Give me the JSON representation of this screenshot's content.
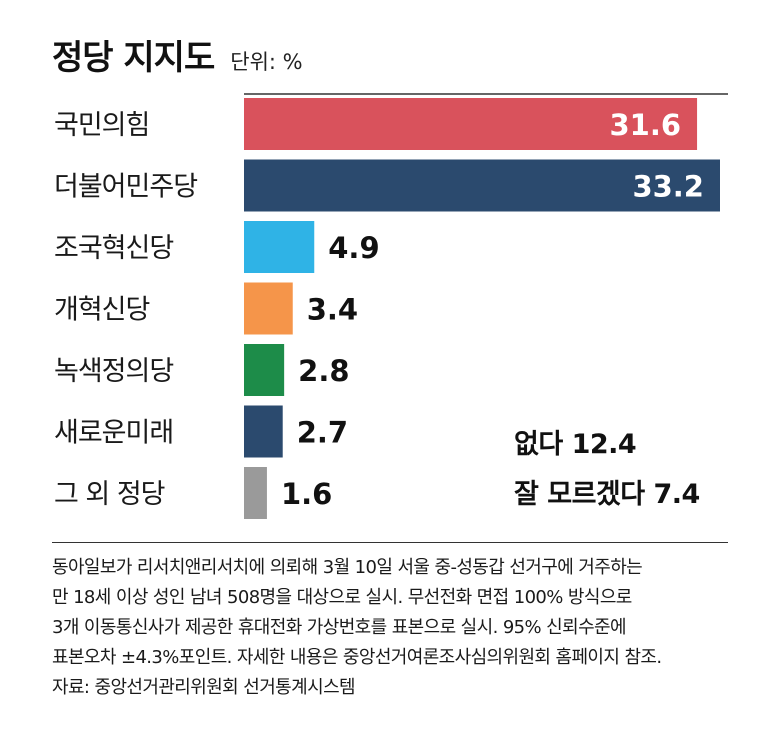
{
  "header": {
    "title": "정당 지지도",
    "unit": "단위: %"
  },
  "chart_data": {
    "type": "bar",
    "orientation": "horizontal",
    "title": "정당 지지도",
    "unit": "%",
    "categories": [
      "국민의힘",
      "더불어민주당",
      "조국혁신당",
      "개혁신당",
      "녹색정의당",
      "새로운미래",
      "그 외 정당"
    ],
    "values": [
      31.6,
      33.2,
      4.9,
      3.4,
      2.8,
      2.7,
      1.6
    ],
    "value_labels": [
      "31.6",
      "33.2",
      "4.9",
      "3.4",
      "2.8",
      "2.7",
      "1.6"
    ],
    "colors": [
      "#d9525c",
      "#2b4a6e",
      "#2fb3e6",
      "#f5954a",
      "#1d8c49",
      "#2b4a6e",
      "#9a9a9a"
    ],
    "xlim": [
      0,
      33.2
    ],
    "grid": false,
    "legend": "none",
    "extra_values": [
      {
        "label": "없다",
        "value": 12.4
      },
      {
        "label": "잘 모르겠다",
        "value": 7.4
      }
    ]
  },
  "side_notes": {
    "none": "없다 12.4",
    "unsure": "잘 모르겠다 7.4"
  },
  "footnote": {
    "lines": [
      "동아일보가 리서치앤리서치에 의뢰해 3월 10일 서울 중-성동갑 선거구에 거주하는",
      "만 18세 이상 성인 남녀 508명을 대상으로 실시. 무선전화 면접 100% 방식으로",
      "3개 이동통신사가 제공한 휴대전화 가상번호를 표본으로 실시. 95% 신뢰수준에",
      "표본오차 ±4.3%포인트. 자세한 내용은 중앙선거여론조사심의위원회 홈페이지 참조."
    ],
    "source": "자료: 중앙선거관리위원회 선거통계시스템"
  }
}
